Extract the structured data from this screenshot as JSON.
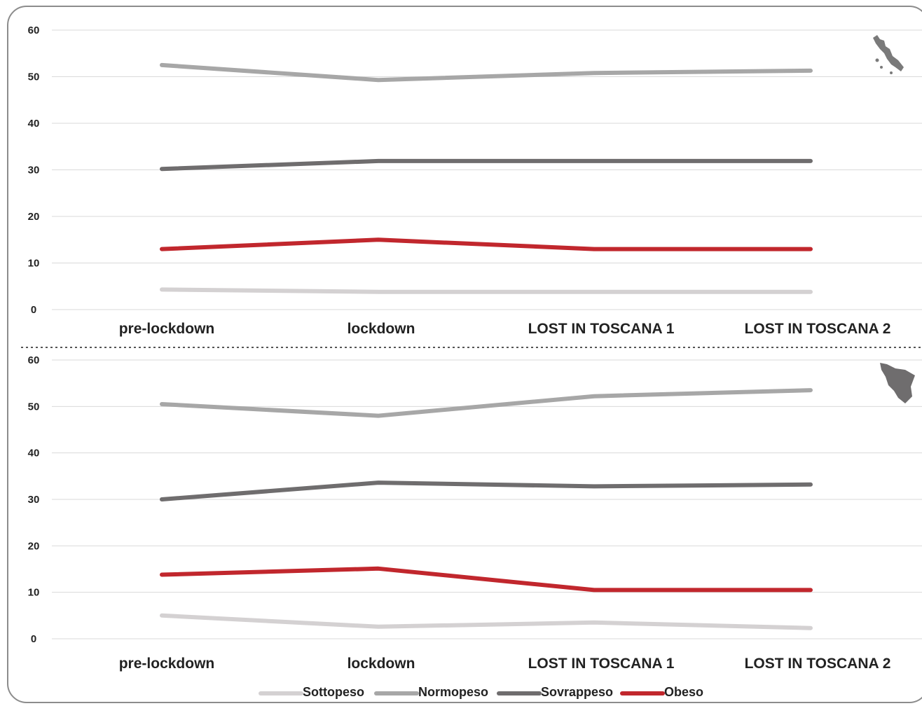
{
  "chart_data": [
    {
      "type": "line",
      "map_icon": "italy-map-icon",
      "categories": [
        "pre-lockdown",
        "lockdown",
        "LOST IN TOSCANA 1",
        "LOST IN TOSCANA 2"
      ],
      "ylim": [
        0,
        60
      ],
      "yticks": [
        0,
        10,
        20,
        30,
        40,
        50,
        60
      ],
      "grid": true,
      "series": [
        {
          "name": "Sottopeso",
          "color": "#d4d1d2",
          "values": [
            4.3,
            3.8,
            3.8,
            3.8
          ]
        },
        {
          "name": "Normopeso",
          "color": "#a7a7a7",
          "values": [
            52.5,
            49.3,
            50.8,
            51.3
          ]
        },
        {
          "name": "Sovrappeso",
          "color": "#6f6d6e",
          "values": [
            30.2,
            31.9,
            31.9,
            31.9
          ]
        },
        {
          "name": "Obeso",
          "color": "#c1272d",
          "values": [
            13.0,
            15.0,
            13.0,
            13.0
          ]
        }
      ]
    },
    {
      "type": "line",
      "map_icon": "tuscany-map-icon",
      "categories": [
        "pre-lockdown",
        "lockdown",
        "LOST IN TOSCANA 1",
        "LOST IN TOSCANA 2"
      ],
      "ylim": [
        0,
        60
      ],
      "yticks": [
        0,
        10,
        20,
        30,
        40,
        50,
        60
      ],
      "grid": true,
      "series": [
        {
          "name": "Sottopeso",
          "color": "#d4d1d2",
          "values": [
            5.0,
            2.6,
            3.5,
            2.3
          ]
        },
        {
          "name": "Normopeso",
          "color": "#a7a7a7",
          "values": [
            50.5,
            48.0,
            52.2,
            53.5
          ]
        },
        {
          "name": "Sovrappeso",
          "color": "#6f6d6e",
          "values": [
            30.0,
            33.6,
            32.8,
            33.2
          ]
        },
        {
          "name": "Obeso",
          "color": "#c1272d",
          "values": [
            13.8,
            15.1,
            10.5,
            10.5
          ]
        }
      ]
    }
  ],
  "legend": {
    "placement": "bottom",
    "items": [
      {
        "label": "Sottopeso",
        "color": "#d4d1d2"
      },
      {
        "label": "Normopeso",
        "color": "#a7a7a7"
      },
      {
        "label": "Sovrappeso",
        "color": "#6f6d6e"
      },
      {
        "label": "Obeso",
        "color": "#c1272d"
      }
    ]
  }
}
